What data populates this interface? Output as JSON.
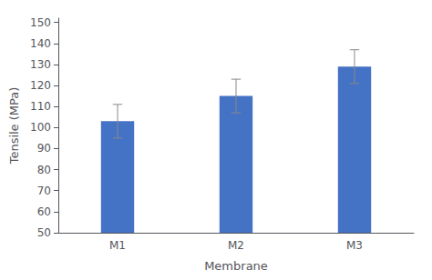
{
  "chart_data": {
    "type": "bar",
    "categories": [
      "M1",
      "M2",
      "M3"
    ],
    "values": [
      103,
      115,
      129
    ],
    "errors": [
      8,
      8,
      8
    ],
    "color": "#4472C4",
    "xlabel": "Membrane",
    "ylabel": "Tensile (MPa)",
    "ylim": [
      50,
      152
    ],
    "yticks": [
      50,
      60,
      70,
      80,
      90,
      100,
      110,
      120,
      130,
      140,
      150
    ],
    "grid": false
  }
}
